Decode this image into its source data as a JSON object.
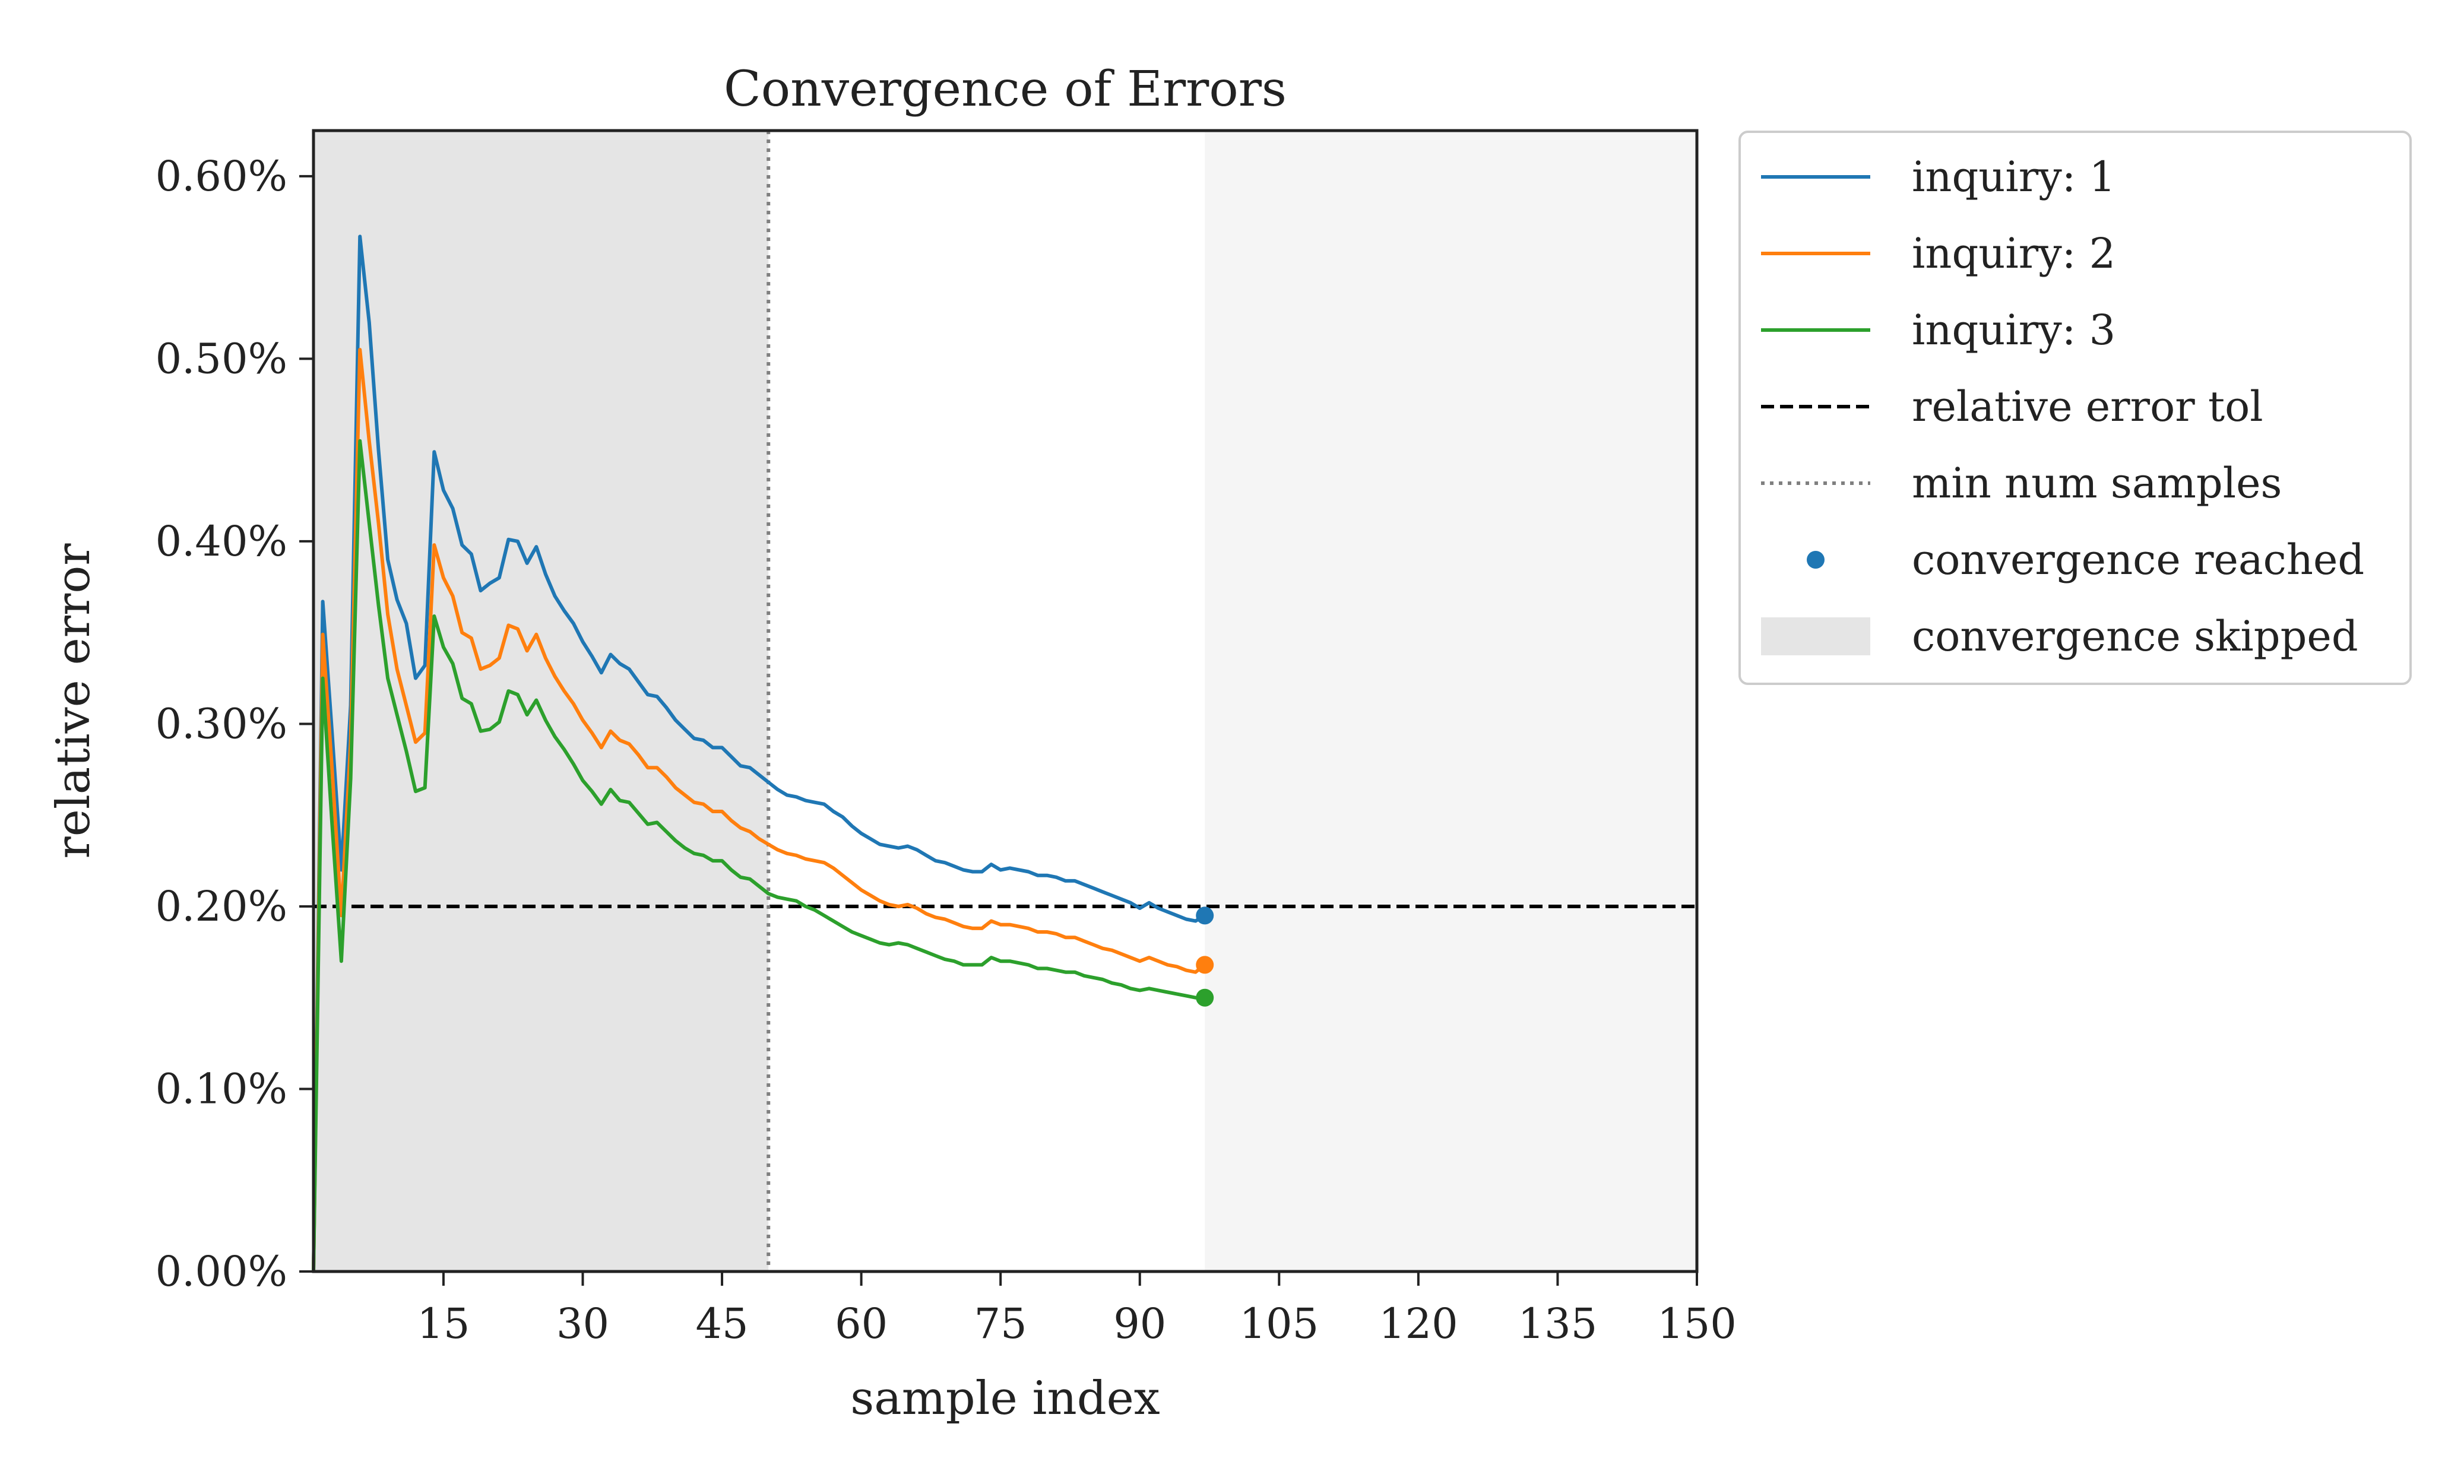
{
  "chart_data": {
    "type": "line",
    "title": "Convergence of Errors",
    "xlabel": "sample index",
    "ylabel": "relative error",
    "xlim": [
      1,
      150
    ],
    "ylim": [
      0,
      0.00625
    ],
    "x_ticks": [
      15,
      30,
      45,
      60,
      75,
      90,
      105,
      120,
      135,
      150
    ],
    "x_tick_labels": [
      "15",
      "30",
      "45",
      "60",
      "75",
      "90",
      "105",
      "120",
      "135",
      "150"
    ],
    "y_ticks": [
      0,
      0.001,
      0.002,
      0.003,
      0.004,
      0.005,
      0.006
    ],
    "y_tick_labels": [
      "0.00%",
      "0.10%",
      "0.20%",
      "0.30%",
      "0.40%",
      "0.50%",
      "0.60%"
    ],
    "grid": false,
    "legend_position": "outside-right-top",
    "colors": {
      "inquiry_1": "#1f77b4",
      "inquiry_2": "#ff7f0e",
      "inquiry_3": "#2ca02c",
      "tolerance": "#000000",
      "min_samples": "#808080",
      "skipped_region": "#e5e5e5",
      "post_convergence_region": "#f5f5f5"
    },
    "relative_error_tolerance": 0.002,
    "min_num_samples": 50,
    "convergence_sample": 97,
    "skipped_range": [
      1,
      50
    ],
    "post_convergence_range": [
      97,
      150
    ],
    "series": [
      {
        "name": "inquiry: 1",
        "x": [
          1,
          2,
          3,
          4,
          5,
          6,
          7,
          8,
          9,
          10,
          11,
          12,
          13,
          14,
          15,
          16,
          17,
          18,
          19,
          20,
          21,
          22,
          23,
          24,
          25,
          26,
          27,
          28,
          29,
          30,
          31,
          32,
          33,
          34,
          35,
          36,
          37,
          38,
          39,
          40,
          41,
          42,
          43,
          44,
          45,
          46,
          47,
          48,
          49,
          50,
          51,
          52,
          53,
          54,
          55,
          56,
          57,
          58,
          59,
          60,
          61,
          62,
          63,
          64,
          65,
          66,
          67,
          68,
          69,
          70,
          71,
          72,
          73,
          74,
          75,
          76,
          77,
          78,
          79,
          80,
          81,
          82,
          83,
          84,
          85,
          86,
          87,
          88,
          89,
          90,
          91,
          92,
          93,
          94,
          95,
          96,
          97
        ],
        "values": [
          0.0,
          0.00367,
          0.00295,
          0.0022,
          0.0031,
          0.00567,
          0.0052,
          0.0045,
          0.0039,
          0.00368,
          0.00355,
          0.00325,
          0.00332,
          0.00449,
          0.00428,
          0.00418,
          0.00398,
          0.00393,
          0.00373,
          0.00377,
          0.0038,
          0.00401,
          0.004,
          0.00388,
          0.00397,
          0.00382,
          0.0037,
          0.00362,
          0.00355,
          0.00345,
          0.00337,
          0.00328,
          0.00338,
          0.00333,
          0.0033,
          0.00323,
          0.00316,
          0.00315,
          0.00309,
          0.00302,
          0.00297,
          0.00292,
          0.00291,
          0.00287,
          0.00287,
          0.00282,
          0.00277,
          0.00276,
          0.00272,
          0.00268,
          0.00264,
          0.00261,
          0.0026,
          0.00258,
          0.00257,
          0.00256,
          0.00252,
          0.00249,
          0.00244,
          0.0024,
          0.00237,
          0.00234,
          0.00233,
          0.00232,
          0.00233,
          0.00231,
          0.00228,
          0.00225,
          0.00224,
          0.00222,
          0.0022,
          0.00219,
          0.00219,
          0.00223,
          0.0022,
          0.00221,
          0.0022,
          0.00219,
          0.00217,
          0.00217,
          0.00216,
          0.00214,
          0.00214,
          0.00212,
          0.0021,
          0.00208,
          0.00206,
          0.00204,
          0.00202,
          0.00199,
          0.00202,
          0.00199,
          0.00197,
          0.00195,
          0.00193,
          0.00192,
          0.00195
        ],
        "converged": {
          "x": 97,
          "y": 0.00195
        }
      },
      {
        "name": "inquiry: 2",
        "x": [
          1,
          2,
          3,
          4,
          5,
          6,
          7,
          8,
          9,
          10,
          11,
          12,
          13,
          14,
          15,
          16,
          17,
          18,
          19,
          20,
          21,
          22,
          23,
          24,
          25,
          26,
          27,
          28,
          29,
          30,
          31,
          32,
          33,
          34,
          35,
          36,
          37,
          38,
          39,
          40,
          41,
          42,
          43,
          44,
          45,
          46,
          47,
          48,
          49,
          50,
          51,
          52,
          53,
          54,
          55,
          56,
          57,
          58,
          59,
          60,
          61,
          62,
          63,
          64,
          65,
          66,
          67,
          68,
          69,
          70,
          71,
          72,
          73,
          74,
          75,
          76,
          77,
          78,
          79,
          80,
          81,
          82,
          83,
          84,
          85,
          86,
          87,
          88,
          89,
          90,
          91,
          92,
          93,
          94,
          95,
          96,
          97
        ],
        "values": [
          0.0,
          0.00349,
          0.00275,
          0.00195,
          0.0029,
          0.00505,
          0.00455,
          0.0041,
          0.0036,
          0.0033,
          0.0031,
          0.0029,
          0.00295,
          0.00398,
          0.0038,
          0.0037,
          0.0035,
          0.00347,
          0.0033,
          0.00332,
          0.00336,
          0.00354,
          0.00352,
          0.0034,
          0.00349,
          0.00336,
          0.00326,
          0.00318,
          0.00311,
          0.00302,
          0.00295,
          0.00287,
          0.00296,
          0.00291,
          0.00289,
          0.00283,
          0.00276,
          0.00276,
          0.00271,
          0.00265,
          0.00261,
          0.00257,
          0.00256,
          0.00252,
          0.00252,
          0.00247,
          0.00243,
          0.00241,
          0.00237,
          0.00234,
          0.00231,
          0.00229,
          0.00228,
          0.00226,
          0.00225,
          0.00224,
          0.00221,
          0.00217,
          0.00213,
          0.00209,
          0.00206,
          0.00203,
          0.00201,
          0.002,
          0.00201,
          0.00199,
          0.00196,
          0.00194,
          0.00193,
          0.00191,
          0.00189,
          0.00188,
          0.00188,
          0.00192,
          0.0019,
          0.0019,
          0.00189,
          0.00188,
          0.00186,
          0.00186,
          0.00185,
          0.00183,
          0.00183,
          0.00181,
          0.00179,
          0.00177,
          0.00176,
          0.00174,
          0.00172,
          0.0017,
          0.00172,
          0.0017,
          0.00168,
          0.00167,
          0.00165,
          0.00164,
          0.00168
        ],
        "converged": {
          "x": 97,
          "y": 0.00168
        }
      },
      {
        "name": "inquiry: 3",
        "x": [
          1,
          2,
          3,
          4,
          5,
          6,
          7,
          8,
          9,
          10,
          11,
          12,
          13,
          14,
          15,
          16,
          17,
          18,
          19,
          20,
          21,
          22,
          23,
          24,
          25,
          26,
          27,
          28,
          29,
          30,
          31,
          32,
          33,
          34,
          35,
          36,
          37,
          38,
          39,
          40,
          41,
          42,
          43,
          44,
          45,
          46,
          47,
          48,
          49,
          50,
          51,
          52,
          53,
          54,
          55,
          56,
          57,
          58,
          59,
          60,
          61,
          62,
          63,
          64,
          65,
          66,
          67,
          68,
          69,
          70,
          71,
          72,
          73,
          74,
          75,
          76,
          77,
          78,
          79,
          80,
          81,
          82,
          83,
          84,
          85,
          86,
          87,
          88,
          89,
          90,
          91,
          92,
          93,
          94,
          95,
          96,
          97
        ],
        "values": [
          0.0,
          0.00325,
          0.00245,
          0.0017,
          0.0027,
          0.00455,
          0.0041,
          0.00365,
          0.00325,
          0.00305,
          0.00285,
          0.00263,
          0.00265,
          0.00359,
          0.00342,
          0.00333,
          0.00314,
          0.00311,
          0.00296,
          0.00297,
          0.00301,
          0.00318,
          0.00316,
          0.00305,
          0.00313,
          0.00302,
          0.00293,
          0.00286,
          0.00278,
          0.00269,
          0.00263,
          0.00256,
          0.00264,
          0.00258,
          0.00257,
          0.00251,
          0.00245,
          0.00246,
          0.00241,
          0.00236,
          0.00232,
          0.00229,
          0.00228,
          0.00225,
          0.00225,
          0.0022,
          0.00216,
          0.00215,
          0.00211,
          0.00207,
          0.00205,
          0.00204,
          0.00203,
          0.002,
          0.00198,
          0.00195,
          0.00192,
          0.00189,
          0.00186,
          0.00184,
          0.00182,
          0.0018,
          0.00179,
          0.0018,
          0.00179,
          0.00177,
          0.00175,
          0.00173,
          0.00171,
          0.0017,
          0.00168,
          0.00168,
          0.00168,
          0.00172,
          0.0017,
          0.0017,
          0.00169,
          0.00168,
          0.00166,
          0.00166,
          0.00165,
          0.00164,
          0.00164,
          0.00162,
          0.00161,
          0.0016,
          0.00158,
          0.00157,
          0.00155,
          0.00154,
          0.00155,
          0.00154,
          0.00153,
          0.00152,
          0.00151,
          0.0015,
          0.0015
        ],
        "converged": {
          "x": 97,
          "y": 0.0015
        }
      }
    ],
    "legend": {
      "entries": [
        {
          "label": "inquiry: 1",
          "kind": "line",
          "color": "#1f77b4"
        },
        {
          "label": "inquiry: 2",
          "kind": "line",
          "color": "#ff7f0e"
        },
        {
          "label": "inquiry: 3",
          "kind": "line",
          "color": "#2ca02c"
        },
        {
          "label": "relative error tol",
          "kind": "dashed",
          "color": "#000000"
        },
        {
          "label": "min num samples",
          "kind": "dotted",
          "color": "#808080"
        },
        {
          "label": "convergence reached",
          "kind": "marker",
          "color": "#1f77b4"
        },
        {
          "label": "convergence skipped",
          "kind": "patch",
          "color": "#e5e5e5"
        }
      ]
    }
  }
}
